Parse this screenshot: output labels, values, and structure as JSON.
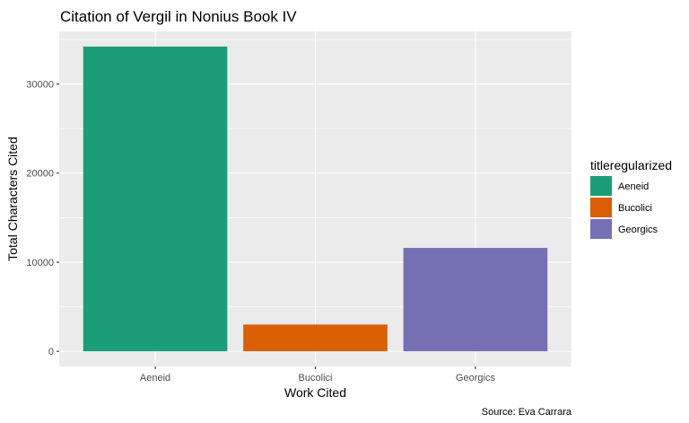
{
  "chart_data": {
    "type": "bar",
    "title": "Citation of Vergil in Nonius Book IV",
    "xlabel": "Work Cited",
    "ylabel": "Total Characters Cited",
    "categories": [
      "Aeneid",
      "Bucolici",
      "Georgics"
    ],
    "values": [
      34200,
      3000,
      11600
    ],
    "colors": [
      "#1b9e77",
      "#d95f02",
      "#7570b3"
    ],
    "ylim": [
      -1700,
      35900
    ],
    "yticks": [
      0,
      10000,
      20000,
      30000
    ],
    "ytick_labels": [
      "0",
      "10000",
      "20000",
      "30000"
    ],
    "grid": true,
    "panel_background": "#ebebeb",
    "legend": {
      "title": "titleregularized",
      "position": "right",
      "entries": [
        "Aeneid",
        "Bucolici",
        "Georgics"
      ]
    },
    "caption": "Source: Eva Carrara"
  }
}
